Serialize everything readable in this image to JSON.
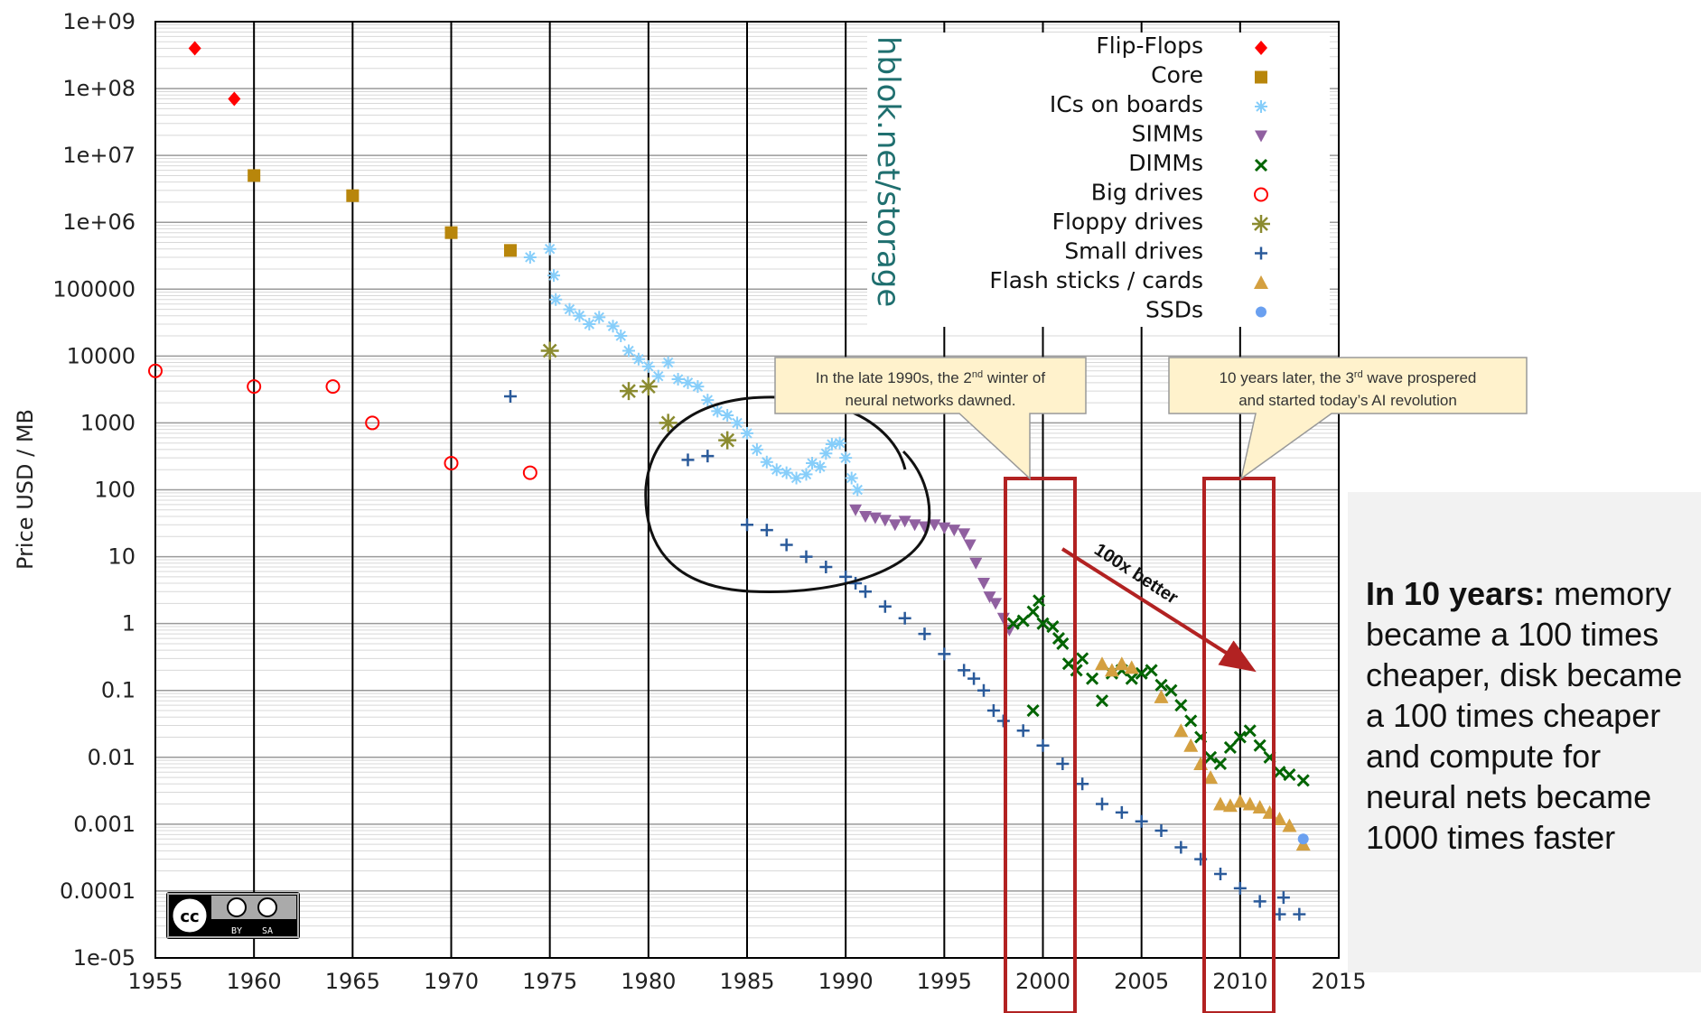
{
  "chart_data": {
    "type": "scatter",
    "ylabel": "Price USD / MB",
    "xlabel": "",
    "xlim": [
      1955,
      2015
    ],
    "ylim": [
      1e-05,
      1000000000
    ],
    "y_scale": "log",
    "x_ticks": [
      "1955",
      "1960",
      "1965",
      "1970",
      "1975",
      "1980",
      "1985",
      "1990",
      "1995",
      "2000",
      "2005",
      "2010",
      "2015"
    ],
    "y_ticks": [
      "1e+09",
      "1e+08",
      "1e+07",
      "1e+06",
      "100000",
      "10000",
      "1000",
      "100",
      "10",
      "1",
      "0.1",
      "0.01",
      "0.001",
      "0.0001",
      "1e-05"
    ],
    "grid": true,
    "legend_position": "top-right",
    "series": [
      {
        "name": "Flip-Flops",
        "color": "#ff0000",
        "marker": "diamond",
        "points": [
          [
            1957,
            400000000
          ],
          [
            1959,
            70000000
          ]
        ]
      },
      {
        "name": "Core",
        "color": "#b8860b",
        "marker": "square",
        "points": [
          [
            1960,
            5000000
          ],
          [
            1965,
            2500000
          ],
          [
            1970,
            700000
          ],
          [
            1973,
            380000
          ]
        ]
      },
      {
        "name": "ICs on boards",
        "color": "#87cefa",
        "marker": "asterisk",
        "points": [
          [
            1974,
            300000
          ],
          [
            1975,
            400000
          ],
          [
            1975.2,
            160000
          ],
          [
            1975.3,
            70000
          ],
          [
            1976,
            50000
          ],
          [
            1976.5,
            40000
          ],
          [
            1977,
            30000
          ],
          [
            1977.5,
            38000
          ],
          [
            1978.2,
            28000
          ],
          [
            1978.6,
            20000
          ],
          [
            1979,
            12000
          ],
          [
            1979.5,
            9000
          ],
          [
            1980,
            7000
          ],
          [
            1980.5,
            5000
          ],
          [
            1981,
            8000
          ],
          [
            1981.5,
            4500
          ],
          [
            1982,
            4000
          ],
          [
            1982.5,
            3500
          ],
          [
            1983,
            2200
          ],
          [
            1983.5,
            1500
          ],
          [
            1984,
            1300
          ],
          [
            1984.5,
            1000
          ],
          [
            1985,
            700
          ],
          [
            1985.5,
            400
          ],
          [
            1986,
            260
          ],
          [
            1986.5,
            200
          ],
          [
            1987,
            180
          ],
          [
            1987.5,
            150
          ],
          [
            1988,
            170
          ],
          [
            1988.3,
            250
          ],
          [
            1988.7,
            220
          ],
          [
            1989,
            350
          ],
          [
            1989.3,
            480
          ],
          [
            1989.7,
            500
          ],
          [
            1990,
            300
          ],
          [
            1990.3,
            150
          ],
          [
            1990.6,
            100
          ]
        ]
      },
      {
        "name": "SIMMs",
        "color": "#9060a0",
        "marker": "triangle-down",
        "points": [
          [
            1990.5,
            50
          ],
          [
            1991,
            40
          ],
          [
            1991.5,
            38
          ],
          [
            1992,
            35
          ],
          [
            1992.5,
            30
          ],
          [
            1993,
            34
          ],
          [
            1993.5,
            30
          ],
          [
            1994,
            28
          ],
          [
            1994.5,
            30
          ],
          [
            1995,
            27
          ],
          [
            1995.5,
            25
          ],
          [
            1996,
            22
          ],
          [
            1996.3,
            15
          ],
          [
            1996.6,
            8
          ],
          [
            1997,
            4
          ],
          [
            1997.3,
            2.5
          ],
          [
            1997.6,
            2
          ],
          [
            1998,
            1.2
          ],
          [
            1998.3,
            0.8
          ]
        ]
      },
      {
        "name": "DIMMs",
        "color": "#006400",
        "marker": "x",
        "points": [
          [
            1998.5,
            1
          ],
          [
            1999,
            1.1
          ],
          [
            1999.5,
            1.5
          ],
          [
            1999.8,
            2.2
          ],
          [
            2000,
            1
          ],
          [
            2000.5,
            0.9
          ],
          [
            2000.8,
            0.6
          ],
          [
            2001,
            0.5
          ],
          [
            2001.3,
            0.25
          ],
          [
            2001.7,
            0.2
          ],
          [
            2002,
            0.3
          ],
          [
            2002.5,
            0.15
          ],
          [
            2003,
            0.07
          ],
          [
            2003.5,
            0.18
          ],
          [
            2004,
            0.2
          ],
          [
            2004.5,
            0.15
          ],
          [
            2005,
            0.18
          ],
          [
            2005.5,
            0.2
          ],
          [
            2006,
            0.12
          ],
          [
            2006.5,
            0.1
          ],
          [
            2007,
            0.06
          ],
          [
            2007.5,
            0.035
          ],
          [
            2008,
            0.02
          ],
          [
            2008.5,
            0.01
          ],
          [
            2009,
            0.008
          ],
          [
            2009.5,
            0.014
          ],
          [
            2010,
            0.02
          ],
          [
            2010.5,
            0.025
          ],
          [
            2011,
            0.015
          ],
          [
            2011.5,
            0.01
          ],
          [
            2012,
            0.006
          ],
          [
            2012.5,
            0.0055
          ],
          [
            1999.5,
            0.05
          ],
          [
            2013.2,
            0.0045
          ]
        ]
      },
      {
        "name": "Big drives",
        "color": "#ff0000",
        "marker": "circle-open",
        "points": [
          [
            1955,
            6000
          ],
          [
            1960,
            3500
          ],
          [
            1964,
            3500
          ],
          [
            1966,
            1000
          ],
          [
            1970,
            250
          ],
          [
            1974,
            180
          ]
        ]
      },
      {
        "name": "Floppy drives",
        "color": "#8b8b30",
        "marker": "star",
        "points": [
          [
            1975,
            12000
          ],
          [
            1979,
            3000
          ],
          [
            1980,
            3500
          ],
          [
            1981,
            1000
          ],
          [
            1984,
            550
          ]
        ]
      },
      {
        "name": "Small drives",
        "color": "#2a5a9a",
        "marker": "plus",
        "points": [
          [
            1973,
            2500
          ],
          [
            1982,
            280
          ],
          [
            1983,
            320
          ],
          [
            1985,
            30
          ],
          [
            1986,
            25
          ],
          [
            1987,
            15
          ],
          [
            1988,
            10
          ],
          [
            1989,
            7
          ],
          [
            1990,
            5
          ],
          [
            1990.5,
            4
          ],
          [
            1991,
            3
          ],
          [
            1992,
            1.8
          ],
          [
            1993,
            1.2
          ],
          [
            1994,
            0.7
          ],
          [
            1995,
            0.35
          ],
          [
            1996,
            0.2
          ],
          [
            1996.5,
            0.15
          ],
          [
            1997,
            0.1
          ],
          [
            1997.5,
            0.05
          ],
          [
            1998,
            0.035
          ],
          [
            1999,
            0.025
          ],
          [
            2000,
            0.015
          ],
          [
            2001,
            0.008
          ],
          [
            2002,
            0.004
          ],
          [
            2003,
            0.002
          ],
          [
            2004,
            0.0015
          ],
          [
            2005,
            0.0011
          ],
          [
            2006,
            0.0008
          ],
          [
            2007,
            0.00045
          ],
          [
            2008,
            0.0003
          ],
          [
            2009,
            0.00018
          ],
          [
            2010,
            0.00011
          ],
          [
            2011,
            7e-05
          ],
          [
            2012,
            4.5e-05
          ],
          [
            2012.2,
            8e-05
          ],
          [
            2013,
            4.5e-05
          ]
        ]
      },
      {
        "name": "Flash sticks / cards",
        "color": "#d4a040",
        "marker": "triangle",
        "points": [
          [
            2003,
            0.25
          ],
          [
            2003.5,
            0.2
          ],
          [
            2004,
            0.25
          ],
          [
            2004.5,
            0.22
          ],
          [
            2006,
            0.08
          ],
          [
            2007,
            0.025
          ],
          [
            2007.5,
            0.015
          ],
          [
            2008,
            0.008
          ],
          [
            2008.5,
            0.005
          ],
          [
            2009,
            0.002
          ],
          [
            2009.5,
            0.0019
          ],
          [
            2010,
            0.0022
          ],
          [
            2010.5,
            0.002
          ],
          [
            2011,
            0.0018
          ],
          [
            2011.5,
            0.0015
          ],
          [
            2012,
            0.0012
          ],
          [
            2012.5,
            0.00095
          ],
          [
            2013.2,
            0.0005
          ]
        ]
      },
      {
        "name": "SSDs",
        "color": "#6aa0f0",
        "marker": "hexagon",
        "points": [
          [
            2013.2,
            0.0006
          ]
        ]
      }
    ]
  },
  "watermark": "hblok.net/storage",
  "callouts": {
    "left": {
      "line1_pre": "In the late 1990s, the 2",
      "line1_sup": "nd",
      "line1_post": " winter of",
      "line2": "neural networks dawned."
    },
    "right": {
      "line1_pre": "10 years later, the 3",
      "line1_sup": "rd",
      "line1_post": " wave prospered",
      "line2": "and started today’s AI revolution"
    }
  },
  "arrow_label": "100x better",
  "side_panel": {
    "bold": "In 10 years:",
    "text": " memory became a 100 times cheaper, disk became a 100 times cheaper and compute for neural nets became 1000 times faster"
  },
  "license_badge": {
    "cc": "cc",
    "by": "BY",
    "sa": "SA"
  },
  "colors": {
    "highlight_box": "#b22222",
    "callout_fill": "#fff2cc",
    "watermark": "#1f6f6f"
  }
}
